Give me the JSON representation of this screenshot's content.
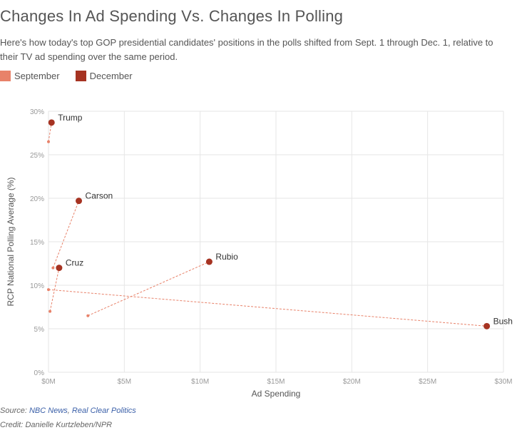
{
  "title": "Changes In Ad Spending Vs. Changes In Polling",
  "subtitle": "Here's how today's top GOP presidential candidates' positions in the polls shifted from Sept. 1 through Dec. 1, relative to their TV ad spending over the same period.",
  "legend": {
    "september": "September",
    "december": "December"
  },
  "colors": {
    "september": "#e8826a",
    "december": "#a63322",
    "connector": "#e8826a",
    "grid": "#e6e6e6",
    "axis_text": "#999999"
  },
  "chart_data": {
    "type": "scatter",
    "xlabel": "Ad Spending",
    "ylabel": "RCP National Polling Average (%)",
    "xlim": [
      0,
      30
    ],
    "ylim": [
      0,
      30
    ],
    "x_unit": "millions of dollars",
    "y_unit": "percent",
    "x_ticks": [
      0,
      5,
      10,
      15,
      20,
      25,
      30
    ],
    "x_tick_labels": [
      "$0M",
      "$5M",
      "$10M",
      "$15M",
      "$20M",
      "$25M",
      "$30M"
    ],
    "y_ticks": [
      0,
      5,
      10,
      15,
      20,
      25,
      30
    ],
    "y_tick_labels": [
      "0%",
      "5%",
      "10%",
      "15%",
      "20%",
      "25%",
      "30%"
    ],
    "grid": true,
    "legend_position": "top-left",
    "series": [
      {
        "name": "September",
        "points": [
          {
            "label": "Trump",
            "x": 0.0,
            "y": 26.5
          },
          {
            "label": "Carson",
            "x": 0.3,
            "y": 12.0
          },
          {
            "label": "Cruz",
            "x": 0.1,
            "y": 7.0
          },
          {
            "label": "Rubio",
            "x": 2.6,
            "y": 6.5
          },
          {
            "label": "Bush",
            "x": 0.0,
            "y": 9.5
          }
        ]
      },
      {
        "name": "December",
        "points": [
          {
            "label": "Trump",
            "x": 0.2,
            "y": 28.7
          },
          {
            "label": "Carson",
            "x": 2.0,
            "y": 19.7
          },
          {
            "label": "Cruz",
            "x": 0.7,
            "y": 12.0
          },
          {
            "label": "Rubio",
            "x": 10.6,
            "y": 12.7
          },
          {
            "label": "Bush",
            "x": 28.9,
            "y": 5.3
          }
        ]
      }
    ]
  },
  "source": {
    "label": "Source:",
    "links": [
      "NBC News",
      "Real Clear Politics"
    ],
    "separator": ", "
  },
  "credit": "Credit: Danielle Kurtzleben/NPR"
}
